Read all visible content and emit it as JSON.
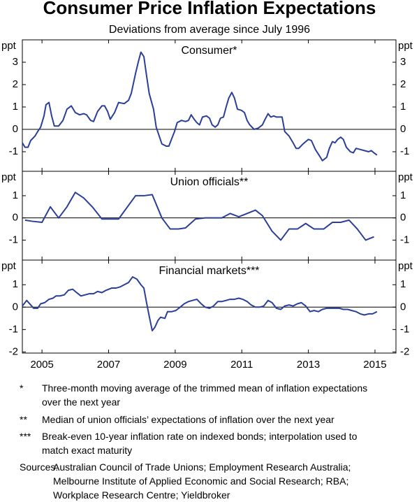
{
  "title": "Consumer Price Inflation Expectations",
  "subtitle": "Deviations from average since July 1996",
  "notes": [
    {
      "marker": "*",
      "text": "Three-month moving average of the trimmed mean of inflation expectations over the next year"
    },
    {
      "marker": "**",
      "text": "Median of union officials’ expectations of inflation over the next year"
    },
    {
      "marker": "***",
      "text": "Break-even 10-year inflation rate on indexed bonds; interpolation used to match exact maturity"
    }
  ],
  "sources": {
    "label": "Sources:",
    "text": "Australian Council of Trade Unions; Employment Research Australia; Melbourne Institute of Applied Economic and Social Research; RBA; Workplace Research Centre; Yieldbroker"
  },
  "chart_data": [
    {
      "type": "line",
      "title": "Consumer*",
      "ylabel": "ppt",
      "color": "#2b3f99",
      "xlim": [
        2004.41,
        2015.63
      ],
      "xticks": [
        2005,
        2007,
        2009,
        2011,
        2013,
        2015
      ],
      "ylim": [
        -1.875,
        4
      ],
      "yticks": [
        -1,
        0,
        1,
        2,
        3
      ],
      "x": [
        2004.41,
        2004.49,
        2004.58,
        2004.66,
        2004.79,
        2004.87,
        2004.96,
        2005.06,
        2005.12,
        2005.21,
        2005.29,
        2005.37,
        2005.5,
        2005.63,
        2005.75,
        2005.88,
        2006.0,
        2006.13,
        2006.25,
        2006.34,
        2006.46,
        2006.55,
        2006.67,
        2006.8,
        2006.88,
        2006.97,
        2007.05,
        2007.18,
        2007.3,
        2007.47,
        2007.6,
        2007.68,
        2007.81,
        2007.89,
        2007.97,
        2008.06,
        2008.14,
        2008.22,
        2008.35,
        2008.43,
        2008.52,
        2008.6,
        2008.73,
        2008.81,
        2008.9,
        2008.98,
        2009.06,
        2009.19,
        2009.31,
        2009.4,
        2009.48,
        2009.57,
        2009.65,
        2009.73,
        2009.82,
        2009.94,
        2010.03,
        2010.11,
        2010.2,
        2010.28,
        2010.36,
        2010.45,
        2010.53,
        2010.61,
        2010.7,
        2010.78,
        2010.87,
        2010.99,
        2011.08,
        2011.16,
        2011.24,
        2011.37,
        2011.49,
        2011.62,
        2011.7,
        2011.79,
        2011.87,
        2011.96,
        2012.04,
        2012.21,
        2012.29,
        2012.42,
        2012.54,
        2012.63,
        2012.71,
        2012.84,
        2012.92,
        2013.0,
        2013.09,
        2013.21,
        2013.34,
        2013.42,
        2013.55,
        2013.63,
        2013.72,
        2013.8,
        2013.88,
        2013.97,
        2014.05,
        2014.14,
        2014.26,
        2014.35,
        2014.43,
        2014.56,
        2014.68,
        2014.81,
        2014.89,
        2014.97,
        2015.06
      ],
      "values": [
        -0.6,
        -0.8,
        -0.8,
        -0.5,
        -0.3,
        -0.1,
        0.1,
        0.6,
        1.1,
        1.2,
        0.6,
        0.15,
        0.15,
        0.4,
        0.9,
        1.05,
        0.75,
        0.65,
        0.7,
        0.65,
        0.4,
        0.35,
        0.8,
        1.05,
        1.05,
        0.8,
        0.45,
        0.75,
        1.2,
        1.15,
        1.3,
        1.6,
        2.5,
        3.0,
        3.45,
        3.25,
        2.4,
        1.6,
        0.9,
        0.1,
        -0.3,
        -0.65,
        -0.75,
        -0.75,
        -0.4,
        -0.1,
        0.3,
        0.4,
        0.35,
        0.4,
        0.65,
        0.45,
        0.3,
        0.2,
        0.55,
        0.6,
        0.5,
        0.2,
        0.1,
        0.2,
        0.5,
        0.55,
        1.0,
        1.4,
        1.65,
        1.4,
        0.9,
        0.85,
        0.75,
        0.4,
        0.2,
        0.0,
        0.05,
        0.2,
        0.45,
        0.7,
        0.55,
        0.6,
        0.55,
        0.55,
        -0.1,
        -0.3,
        -0.6,
        -0.85,
        -0.85,
        -0.65,
        -0.55,
        -0.45,
        -0.5,
        -0.9,
        -1.2,
        -1.4,
        -1.25,
        -0.85,
        -0.55,
        -0.6,
        -0.45,
        -0.35,
        -0.45,
        -0.8,
        -1.0,
        -1.05,
        -0.85,
        -0.9,
        -0.95,
        -1.0,
        -0.95,
        -1.05,
        -1.15
      ]
    },
    {
      "type": "line",
      "title": "Union officials**",
      "ylabel": "ppt",
      "color": "#2b3f99",
      "xlim": [
        2004.41,
        2015.63
      ],
      "xticks": [
        2005,
        2007,
        2009,
        2011,
        2013,
        2015
      ],
      "ylim": [
        -1.9,
        2.1
      ],
      "yticks": [
        -1,
        0,
        1
      ],
      "x": [
        2004.49,
        2004.7,
        2005.0,
        2005.25,
        2005.5,
        2005.75,
        2006.0,
        2006.25,
        2006.51,
        2006.8,
        2007.01,
        2007.3,
        2007.81,
        2008.06,
        2008.31,
        2008.6,
        2008.85,
        2009.1,
        2009.31,
        2009.61,
        2009.9,
        2010.15,
        2010.4,
        2010.65,
        2010.91,
        2011.41,
        2011.62,
        2011.91,
        2012.17,
        2012.42,
        2012.67,
        2012.92,
        2013.17,
        2013.46,
        2013.72,
        2013.97,
        2014.22,
        2014.47,
        2014.72,
        2014.97
      ],
      "values": [
        -0.1,
        -0.15,
        -0.2,
        0.5,
        0.0,
        0.5,
        1.15,
        0.9,
        0.5,
        -0.05,
        -0.05,
        -0.05,
        1.0,
        1.0,
        1.05,
        0.0,
        -0.5,
        -0.5,
        -0.45,
        -0.05,
        0.0,
        0.0,
        0.0,
        0.2,
        0.05,
        0.35,
        0.1,
        -0.6,
        -1.0,
        -0.5,
        -0.5,
        -0.25,
        -0.5,
        -0.5,
        -0.2,
        -0.2,
        -0.1,
        -0.5,
        -1.0,
        -0.85
      ]
    },
    {
      "type": "line",
      "title": "Financial markets***",
      "ylabel": "ppt",
      "color": "#2b3f99",
      "xlim": [
        2004.41,
        2015.63
      ],
      "xticks": [
        2005,
        2007,
        2009,
        2011,
        2013,
        2015
      ],
      "ylim": [
        -2.05,
        2.1
      ],
      "yticks": [
        -2,
        -1,
        0,
        1
      ],
      "x": [
        2004.41,
        2004.54,
        2004.66,
        2004.75,
        2004.87,
        2004.96,
        2005.08,
        2005.21,
        2005.33,
        2005.42,
        2005.54,
        2005.67,
        2005.79,
        2005.92,
        2006.04,
        2006.17,
        2006.3,
        2006.42,
        2006.55,
        2006.67,
        2006.8,
        2006.92,
        2007.09,
        2007.22,
        2007.34,
        2007.47,
        2007.6,
        2007.72,
        2007.85,
        2007.97,
        2008.06,
        2008.14,
        2008.22,
        2008.31,
        2008.39,
        2008.48,
        2008.56,
        2008.69,
        2008.77,
        2008.9,
        2009.02,
        2009.15,
        2009.27,
        2009.4,
        2009.52,
        2009.65,
        2009.78,
        2009.9,
        2010.03,
        2010.15,
        2010.28,
        2010.4,
        2010.53,
        2010.65,
        2010.78,
        2010.91,
        2011.03,
        2011.16,
        2011.28,
        2011.41,
        2011.54,
        2011.66,
        2011.79,
        2011.91,
        2012.04,
        2012.17,
        2012.29,
        2012.42,
        2012.54,
        2012.67,
        2012.79,
        2012.92,
        2013.05,
        2013.17,
        2013.3,
        2013.42,
        2013.55,
        2013.67,
        2013.8,
        2013.93,
        2014.05,
        2014.18,
        2014.3,
        2014.43,
        2014.56,
        2014.68,
        2014.81,
        2014.93,
        2015.06
      ],
      "values": [
        0.05,
        0.3,
        0.1,
        -0.05,
        -0.05,
        0.15,
        0.2,
        0.35,
        0.4,
        0.5,
        0.5,
        0.55,
        0.75,
        0.8,
        0.65,
        0.5,
        0.55,
        0.6,
        0.6,
        0.7,
        0.65,
        0.75,
        0.85,
        0.85,
        0.9,
        1.0,
        1.1,
        1.35,
        1.25,
        1.0,
        0.85,
        0.2,
        -0.4,
        -1.05,
        -0.9,
        -0.6,
        -0.45,
        -0.5,
        -0.2,
        -0.2,
        -0.15,
        0.0,
        0.15,
        0.25,
        0.3,
        0.35,
        0.15,
        0.0,
        -0.05,
        0.05,
        0.25,
        0.25,
        0.3,
        0.35,
        0.35,
        0.4,
        0.35,
        0.25,
        0.1,
        0.0,
        0.0,
        0.05,
        0.3,
        0.2,
        -0.05,
        -0.1,
        0.05,
        0.1,
        0.05,
        0.15,
        0.2,
        0.05,
        -0.2,
        -0.15,
        -0.2,
        -0.1,
        -0.05,
        -0.05,
        -0.05,
        -0.05,
        -0.1,
        -0.1,
        -0.15,
        -0.2,
        -0.3,
        -0.35,
        -0.3,
        -0.3,
        -0.2
      ]
    }
  ]
}
